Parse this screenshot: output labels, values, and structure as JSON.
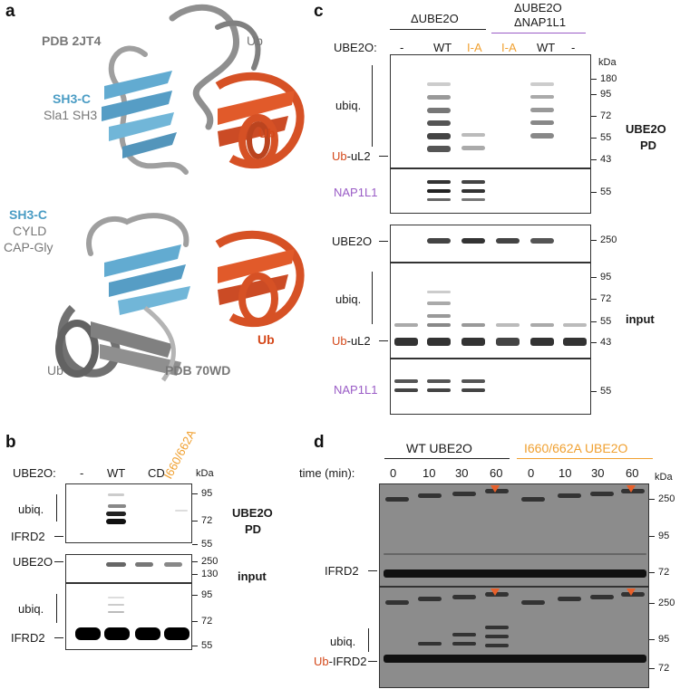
{
  "panel_labels": {
    "a": "a",
    "b": "b",
    "c": "c",
    "d": "d"
  },
  "panel_a": {
    "top": {
      "pdb": "PDB 2JT4",
      "ub_gray": "Ub",
      "sh3c": "SH3-C",
      "sla1": "Sla1 SH3",
      "ub_red": "Ub"
    },
    "bottom": {
      "sh3c": "SH3-C",
      "cyld": "CYLD",
      "capgly": "CAP-Gly",
      "ub_red": "Ub",
      "ub_gray": "Ub",
      "pdb": "PDB 70WD"
    }
  },
  "panel_b": {
    "ube2o_label": "UBE2O:",
    "lanes": [
      "-",
      "WT",
      "CD",
      "I660/662A"
    ],
    "kda": "kDa",
    "pd_markers": [
      "95",
      "72",
      "55"
    ],
    "pd_labels": {
      "ubiq": "ubiq.",
      "ifrd2": "IFRD2"
    },
    "pd_title1": "UBE2O",
    "pd_title2": "PD",
    "input_markers1": [
      "250",
      "130"
    ],
    "input_ube2o": "UBE2O",
    "input_title": "input",
    "input_markers2": [
      "95",
      "72",
      "55"
    ],
    "input_labels": {
      "ubiq": "ubiq.",
      "ifrd2": "IFRD2"
    }
  },
  "panel_c": {
    "group1": "ΔUBE2O",
    "group2_l1": "ΔUBE2O",
    "group2_l2": "ΔNAP1L1",
    "ube2o_label": "UBE2O:",
    "lanes": [
      "-",
      "WT",
      "I-A",
      "I-A",
      "WT",
      "-"
    ],
    "kda": "kDa",
    "pd_markers": [
      "180",
      "95",
      "72",
      "55",
      "43"
    ],
    "nap_marker": "55",
    "ubiq": "ubiq.",
    "ub_prefix": "Ub",
    "ul2": "-uL2",
    "nap1l1": "NAP1L1",
    "pd_title1": "UBE2O",
    "pd_title2": "PD",
    "input_ube2o": "UBE2O",
    "input_m250": "250",
    "input_markers": [
      "95",
      "72",
      "55",
      "43"
    ],
    "input_title": "input",
    "input_nap_marker": "55"
  },
  "panel_d": {
    "group1": "WT UBE2O",
    "group2": "I660/662A UBE2O",
    "time_label": "time (min):",
    "times": [
      "0",
      "10",
      "30",
      "60",
      "0",
      "10",
      "30",
      "60"
    ],
    "kda": "kDa",
    "top_markers": [
      "250",
      "95",
      "72"
    ],
    "ifrd2": "IFRD2",
    "bottom_markers": [
      "250",
      "95",
      "72"
    ],
    "ubiq": "ubiq.",
    "ub_prefix": "Ub",
    "ifrd2_suffix": "-IFRD2"
  }
}
